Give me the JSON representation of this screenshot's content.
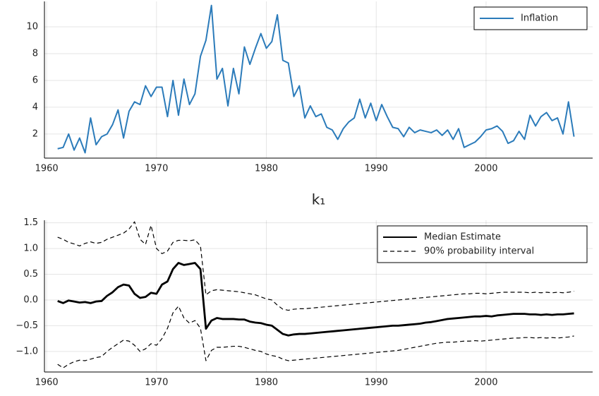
{
  "chart_data": [
    {
      "type": "line",
      "x": [
        1961.0,
        1961.5,
        1962.0,
        1962.5,
        1963.0,
        1963.5,
        1964.0,
        1964.5,
        1965.0,
        1965.5,
        1966.0,
        1966.5,
        1967.0,
        1967.5,
        1968.0,
        1968.5,
        1969.0,
        1969.5,
        1970.0,
        1970.5,
        1971.0,
        1971.5,
        1972.0,
        1972.5,
        1973.0,
        1973.5,
        1974.0,
        1974.5,
        1975.0,
        1975.5,
        1976.0,
        1976.5,
        1977.0,
        1977.5,
        1978.0,
        1978.5,
        1979.0,
        1979.5,
        1980.0,
        1980.5,
        1981.0,
        1981.5,
        1982.0,
        1982.5,
        1983.0,
        1983.5,
        1984.0,
        1984.5,
        1985.0,
        1985.5,
        1986.0,
        1986.5,
        1987.0,
        1987.5,
        1988.0,
        1988.5,
        1989.0,
        1989.5,
        1990.0,
        1990.5,
        1991.0,
        1991.5,
        1992.0,
        1992.5,
        1993.0,
        1993.5,
        1994.0,
        1994.5,
        1995.0,
        1995.5,
        1996.0,
        1996.5,
        1997.0,
        1997.5,
        1998.0,
        1998.5,
        1999.0,
        1999.5,
        2000.0,
        2000.5,
        2001.0,
        2001.5,
        2002.0,
        2002.5,
        2003.0,
        2003.5,
        2004.0,
        2004.5,
        2005.0,
        2005.5,
        2006.0,
        2006.5,
        2007.0,
        2007.5,
        2008.0
      ],
      "series": [
        {
          "name": "Inflation",
          "color": "#2b7bba",
          "line_width": 2,
          "values": [
            0.9,
            1.0,
            2.0,
            0.8,
            1.7,
            0.6,
            3.2,
            1.2,
            1.8,
            2.0,
            2.7,
            3.8,
            1.7,
            3.7,
            4.4,
            4.2,
            5.6,
            4.8,
            5.5,
            5.5,
            3.3,
            6.0,
            3.4,
            6.1,
            4.2,
            5.0,
            7.8,
            9.0,
            11.6,
            6.1,
            6.9,
            4.1,
            6.9,
            5.0,
            8.5,
            7.2,
            8.4,
            9.5,
            8.4,
            8.9,
            10.9,
            7.5,
            7.3,
            4.8,
            5.6,
            3.2,
            4.1,
            3.3,
            3.5,
            2.5,
            2.3,
            1.6,
            2.4,
            2.9,
            3.2,
            4.6,
            3.2,
            4.3,
            3.0,
            4.2,
            3.3,
            2.5,
            2.4,
            1.8,
            2.5,
            2.1,
            2.3,
            2.2,
            2.1,
            2.3,
            1.9,
            2.3,
            1.6,
            2.4,
            1.0,
            1.2,
            1.4,
            1.8,
            2.3,
            2.4,
            2.6,
            2.2,
            1.3,
            1.5,
            2.2,
            1.6,
            3.4,
            2.6,
            3.3,
            3.6,
            3.0,
            3.2,
            2.0,
            4.4,
            1.8
          ]
        }
      ],
      "xlim": [
        1959.8,
        2009.7
      ],
      "ylim": [
        0.2,
        11.9
      ],
      "xticks": [
        1960,
        1970,
        1980,
        1990,
        2000
      ],
      "yticks": [
        2,
        4,
        6,
        8,
        10
      ],
      "grid": true,
      "legend": "top-right"
    },
    {
      "type": "line",
      "title": "k₁",
      "x": [
        1961.0,
        1961.5,
        1962.0,
        1962.5,
        1963.0,
        1963.5,
        1964.0,
        1964.5,
        1965.0,
        1965.5,
        1966.0,
        1966.5,
        1967.0,
        1967.5,
        1968.0,
        1968.5,
        1969.0,
        1969.5,
        1970.0,
        1970.5,
        1971.0,
        1971.5,
        1972.0,
        1972.5,
        1973.0,
        1973.5,
        1974.0,
        1974.5,
        1975.0,
        1975.5,
        1976.0,
        1976.5,
        1977.0,
        1977.5,
        1978.0,
        1978.5,
        1979.0,
        1979.5,
        1980.0,
        1980.5,
        1981.0,
        1981.5,
        1982.0,
        1982.5,
        1983.0,
        1983.5,
        1984.0,
        1984.5,
        1985.0,
        1985.5,
        1986.0,
        1986.5,
        1987.0,
        1987.5,
        1988.0,
        1988.5,
        1989.0,
        1989.5,
        1990.0,
        1990.5,
        1991.0,
        1991.5,
        1992.0,
        1992.5,
        1993.0,
        1993.5,
        1994.0,
        1994.5,
        1995.0,
        1995.5,
        1996.0,
        1996.5,
        1997.0,
        1997.5,
        1998.0,
        1998.5,
        1999.0,
        1999.5,
        2000.0,
        2000.5,
        2001.0,
        2001.5,
        2002.0,
        2002.5,
        2003.0,
        2003.5,
        2004.0,
        2004.5,
        2005.0,
        2005.5,
        2006.0,
        2006.5,
        2007.0,
        2007.5,
        2008.0
      ],
      "series": [
        {
          "name": "Median Estimate",
          "color": "#000000",
          "line_width": 2.8,
          "dash": false,
          "values": [
            -0.02,
            -0.06,
            -0.01,
            -0.03,
            -0.05,
            -0.04,
            -0.06,
            -0.03,
            -0.02,
            0.08,
            0.15,
            0.25,
            0.3,
            0.28,
            0.12,
            0.04,
            0.06,
            0.14,
            0.12,
            0.3,
            0.36,
            0.6,
            0.72,
            0.68,
            0.7,
            0.72,
            0.6,
            -0.56,
            -0.4,
            -0.35,
            -0.37,
            -0.37,
            -0.37,
            -0.38,
            -0.38,
            -0.42,
            -0.44,
            -0.45,
            -0.48,
            -0.5,
            -0.58,
            -0.66,
            -0.69,
            -0.67,
            -0.66,
            -0.66,
            -0.65,
            -0.64,
            -0.63,
            -0.62,
            -0.61,
            -0.6,
            -0.59,
            -0.58,
            -0.57,
            -0.56,
            -0.55,
            -0.54,
            -0.53,
            -0.52,
            -0.51,
            -0.5,
            -0.5,
            -0.49,
            -0.48,
            -0.47,
            -0.46,
            -0.44,
            -0.43,
            -0.41,
            -0.39,
            -0.37,
            -0.36,
            -0.35,
            -0.34,
            -0.33,
            -0.32,
            -0.32,
            -0.31,
            -0.32,
            -0.3,
            -0.29,
            -0.28,
            -0.27,
            -0.27,
            -0.27,
            -0.28,
            -0.28,
            -0.29,
            -0.28,
            -0.29,
            -0.28,
            -0.28,
            -0.27,
            -0.26
          ]
        },
        {
          "name": "90% probability interval",
          "color": "#000000",
          "line_width": 1.2,
          "dash": true,
          "values": [
            1.22,
            1.18,
            1.12,
            1.09,
            1.05,
            1.1,
            1.13,
            1.1,
            1.12,
            1.18,
            1.22,
            1.26,
            1.3,
            1.38,
            1.52,
            1.18,
            1.08,
            1.45,
            1.0,
            0.9,
            0.95,
            1.12,
            1.16,
            1.16,
            1.15,
            1.17,
            1.05,
            0.1,
            0.18,
            0.2,
            0.19,
            0.18,
            0.17,
            0.16,
            0.14,
            0.12,
            0.1,
            0.06,
            0.02,
            0.0,
            -0.1,
            -0.18,
            -0.2,
            -0.18,
            -0.17,
            -0.17,
            -0.16,
            -0.15,
            -0.14,
            -0.13,
            -0.12,
            -0.11,
            -0.1,
            -0.09,
            -0.08,
            -0.07,
            -0.06,
            -0.05,
            -0.04,
            -0.03,
            -0.02,
            -0.01,
            0.0,
            0.01,
            0.02,
            0.03,
            0.04,
            0.05,
            0.06,
            0.07,
            0.08,
            0.09,
            0.1,
            0.11,
            0.12,
            0.12,
            0.13,
            0.13,
            0.12,
            0.13,
            0.14,
            0.15,
            0.15,
            0.15,
            0.15,
            0.15,
            0.14,
            0.15,
            0.14,
            0.15,
            0.14,
            0.15,
            0.14,
            0.15,
            0.17
          ]
        },
        {
          "color": "#000000",
          "line_width": 1.2,
          "dash": true,
          "values": [
            -1.25,
            -1.32,
            -1.25,
            -1.2,
            -1.17,
            -1.18,
            -1.15,
            -1.12,
            -1.1,
            -1.0,
            -0.92,
            -0.85,
            -0.78,
            -0.8,
            -0.88,
            -1.0,
            -0.95,
            -0.85,
            -0.88,
            -0.75,
            -0.55,
            -0.25,
            -0.12,
            -0.35,
            -0.45,
            -0.4,
            -0.55,
            -1.18,
            -0.98,
            -0.92,
            -0.92,
            -0.91,
            -0.9,
            -0.9,
            -0.92,
            -0.95,
            -0.98,
            -1.0,
            -1.05,
            -1.08,
            -1.1,
            -1.15,
            -1.18,
            -1.17,
            -1.16,
            -1.15,
            -1.14,
            -1.13,
            -1.12,
            -1.11,
            -1.1,
            -1.09,
            -1.08,
            -1.07,
            -1.06,
            -1.05,
            -1.04,
            -1.03,
            -1.02,
            -1.01,
            -1.0,
            -0.99,
            -0.98,
            -0.96,
            -0.94,
            -0.92,
            -0.9,
            -0.88,
            -0.86,
            -0.84,
            -0.83,
            -0.82,
            -0.82,
            -0.81,
            -0.8,
            -0.8,
            -0.79,
            -0.8,
            -0.79,
            -0.78,
            -0.77,
            -0.76,
            -0.75,
            -0.74,
            -0.74,
            -0.73,
            -0.73,
            -0.74,
            -0.73,
            -0.74,
            -0.73,
            -0.74,
            -0.73,
            -0.72,
            -0.7
          ]
        }
      ],
      "xlim": [
        1959.8,
        2009.7
      ],
      "ylim": [
        -1.4,
        1.55
      ],
      "xticks": [
        1960,
        1970,
        1980,
        1990,
        2000
      ],
      "yticks": [
        {
          "value": -1,
          "label": "−1.0"
        },
        {
          "value": -0.5,
          "label": "−0.5"
        },
        {
          "value": 0,
          "label": "0.0"
        },
        0.5,
        {
          "value": 1,
          "label": "1.0"
        },
        1.5
      ],
      "grid": true,
      "legend": "top-right"
    }
  ]
}
